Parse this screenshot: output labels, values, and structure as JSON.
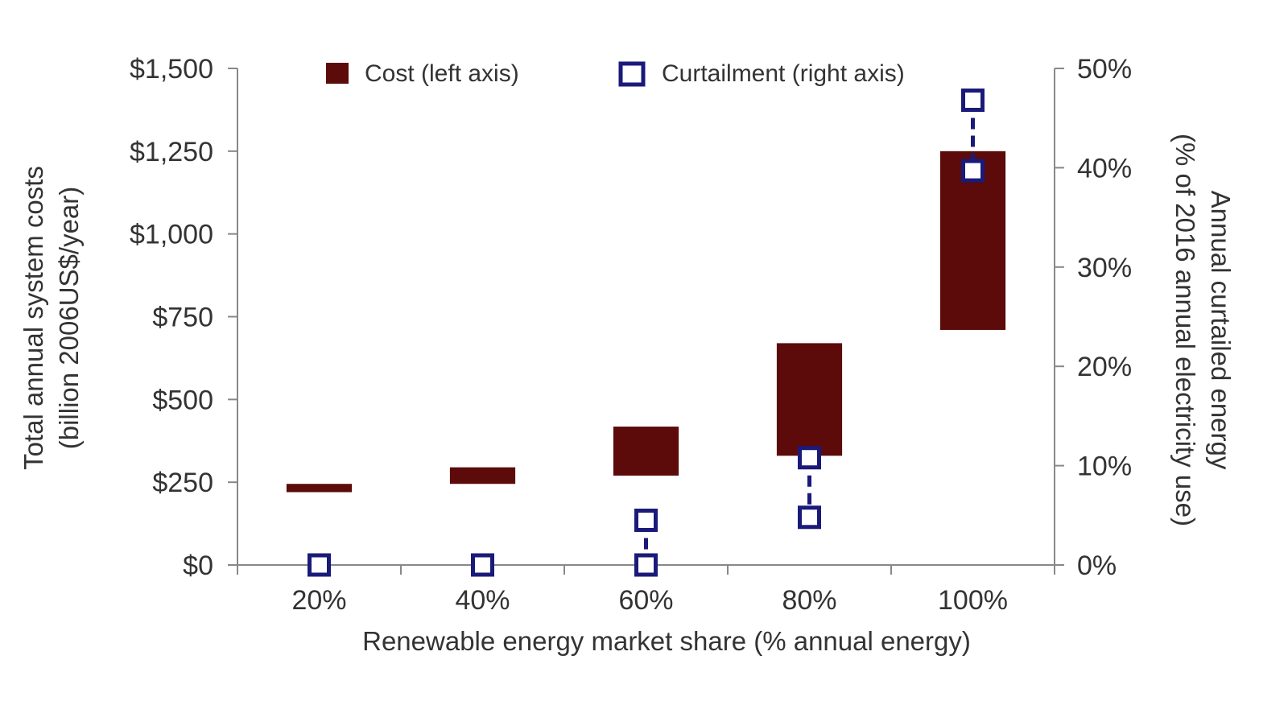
{
  "chart_data": {
    "type": "bar",
    "x_title": "Renewable energy market share (% annual energy)",
    "left_axis": {
      "title_line1": "Total annual system costs",
      "title_line2": "(billion 2006US$/year)",
      "ylim": [
        0,
        1500
      ],
      "ticks": [
        0,
        250,
        500,
        750,
        1000,
        1250,
        1500
      ],
      "tick_labels": [
        "$0",
        "$250",
        "$500",
        "$750",
        "$1,000",
        "$1,250",
        "$1,500"
      ]
    },
    "right_axis": {
      "title_line1": "Annual curtailed energy",
      "title_line2": "(% of 2016 annual electricity use)",
      "ylim": [
        0,
        50
      ],
      "ticks": [
        0,
        10,
        20,
        30,
        40,
        50
      ],
      "tick_labels": [
        "0%",
        "10%",
        "20%",
        "30%",
        "40%",
        "50%"
      ]
    },
    "categories": [
      "20%",
      "40%",
      "60%",
      "80%",
      "100%"
    ],
    "series": [
      {
        "name": "Cost (left axis)",
        "kind": "floating-bar",
        "axis": "left",
        "color": "#5c0a0a",
        "ranges": [
          [
            220,
            245
          ],
          [
            245,
            295
          ],
          [
            270,
            418
          ],
          [
            330,
            670
          ],
          [
            710,
            1250
          ]
        ]
      },
      {
        "name": "Curtailment (right axis)",
        "kind": "range-markers",
        "axis": "right",
        "color": "#1a1a7a",
        "ranges": [
          [
            0,
            0
          ],
          [
            0,
            0
          ],
          [
            0,
            4.5
          ],
          [
            4.8,
            10.8
          ],
          [
            39.7,
            46.8
          ]
        ]
      }
    ],
    "legend_position": "top-center",
    "grid": false
  }
}
